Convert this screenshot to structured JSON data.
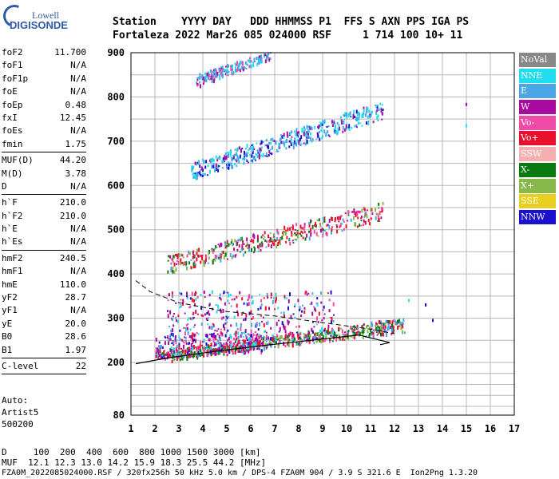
{
  "logo": {
    "line1": "Lowell",
    "line2": "DIGISONDE"
  },
  "header": {
    "row1": "Station    YYYY DAY   DDD HHMMSS P1  FFS S AXN PPS IGA PS",
    "row2": "Fortaleza 2022 Mar26 085 024000 RSF     1 714 100 10+ 11"
  },
  "params": [
    {
      "label": "foF2",
      "value": "11.700"
    },
    {
      "label": "foF1",
      "value": "N/A"
    },
    {
      "label": "foF1p",
      "value": "N/A"
    },
    {
      "label": "foE",
      "value": "N/A"
    },
    {
      "label": "foEp",
      "value": "0.48"
    },
    {
      "label": "fxI",
      "value": "12.45"
    },
    {
      "label": "foEs",
      "value": "N/A"
    },
    {
      "label": "fmin",
      "value": "1.75",
      "sep_after": true
    },
    {
      "label": "MUF(D)",
      "value": "44.20"
    },
    {
      "label": "M(D)",
      "value": "3.78"
    },
    {
      "label": "D",
      "value": "N/A",
      "sep_after": true
    },
    {
      "label": "h`F",
      "value": "210.0"
    },
    {
      "label": "h`F2",
      "value": "210.0"
    },
    {
      "label": "h`E",
      "value": "N/A"
    },
    {
      "label": "h`Es",
      "value": "N/A",
      "sep_after": true
    },
    {
      "label": "hmF2",
      "value": "240.5"
    },
    {
      "label": "hmF1",
      "value": "N/A"
    },
    {
      "label": "hmE",
      "value": "110.0"
    },
    {
      "label": "yF2",
      "value": "28.7"
    },
    {
      "label": "yF1",
      "value": "N/A"
    },
    {
      "label": "yE",
      "value": "20.0"
    },
    {
      "label": "B0",
      "value": "28.6"
    },
    {
      "label": "B1",
      "value": "1.97",
      "sep_after": true
    },
    {
      "label": "C-level",
      "value": "22",
      "sep_after": true
    }
  ],
  "autoscaling": {
    "line1": "Auto:",
    "line2": "Artist5",
    "line3": "500200"
  },
  "legend": [
    {
      "label": "NoVal",
      "color": "#888888"
    },
    {
      "label": "NNE",
      "color": "#22dcf0"
    },
    {
      "label": "E",
      "color": "#4aa6e6"
    },
    {
      "label": "W",
      "color": "#a80aa0"
    },
    {
      "label": "Vo-",
      "color": "#f04aa8"
    },
    {
      "label": "Vo+",
      "color": "#e8102a"
    },
    {
      "label": "SSW",
      "color": "#f4b0b0"
    },
    {
      "label": "X-",
      "color": "#0a7a10"
    },
    {
      "label": "X+",
      "color": "#88b84a"
    },
    {
      "label": "SSE",
      "color": "#e8d020"
    },
    {
      "label": "NNW",
      "color": "#1a10d0"
    }
  ],
  "bottom": {
    "line1": "D     100  200  400  600  800 1000 1500 3000 [km]",
    "line2": "MUF  12.1 12.3 13.0 14.2 15.9 18.3 25.5 44.2 [MHz]",
    "line3": "FZA0M_2022085024000.RSF / 320fx256h 50 kHz 5.0 km / DPS-4 FZA0M 904 / 3.9 S 321.6 E  Ion2Png 1.3.20"
  },
  "chart_data": {
    "type": "scatter",
    "xlim": [
      1,
      17
    ],
    "ylim": [
      80,
      900
    ],
    "x_ticks": [
      1,
      2,
      3,
      4,
      5,
      6,
      7,
      8,
      9,
      10,
      11,
      12,
      13,
      14,
      15,
      16,
      17
    ],
    "y_ticks": [
      80,
      200,
      300,
      400,
      500,
      600,
      700,
      800,
      900
    ],
    "grid": true,
    "clusters": [
      {
        "band": "F2 1st hop",
        "x_range": [
          2,
          12.4
        ],
        "y_start": [
          205,
          225
        ],
        "y_end": [
          265,
          300
        ],
        "color": "Vo+",
        "count": 450
      },
      {
        "band": "F2 1st hop X",
        "x_range": [
          2.5,
          12.5
        ],
        "y_start": [
          200,
          215
        ],
        "y_end": [
          275,
          300
        ],
        "color": "X-",
        "count": 250
      },
      {
        "band": "Spread low",
        "x_range": [
          2,
          6.5
        ],
        "y_start": [
          210,
          260
        ],
        "y_end": [
          220,
          270
        ],
        "color": "W",
        "count": 250
      },
      {
        "band": "Spread mid",
        "x_range": [
          2.5,
          9.5
        ],
        "y_start": [
          250,
          360
        ],
        "y_end": [
          250,
          360
        ],
        "color": "W",
        "count": 350
      },
      {
        "band": "2nd hop",
        "x_range": [
          2.5,
          11.5
        ],
        "y_start": [
          400,
          440
        ],
        "y_end": [
          520,
          560
        ],
        "color": "Vo+",
        "count": 400
      },
      {
        "band": "3rd hop",
        "x_range": [
          3.5,
          11.5
        ],
        "y_start": [
          610,
          650
        ],
        "y_end": [
          750,
          790
        ],
        "color": "E",
        "count": 450
      },
      {
        "band": "4th hop",
        "x_range": [
          3.7,
          6.8
        ],
        "y_start": [
          820,
          850
        ],
        "y_end": [
          885,
          900
        ],
        "color": "NNE",
        "count": 200
      }
    ],
    "isolated_points": [
      {
        "x": 13.3,
        "y": 330,
        "color": "NNW"
      },
      {
        "x": 13.6,
        "y": 295,
        "color": "NNW"
      },
      {
        "x": 15.0,
        "y": 783,
        "color": "W"
      },
      {
        "x": 15.0,
        "y": 735,
        "color": "NNE"
      },
      {
        "x": 12.6,
        "y": 340,
        "color": "NNE"
      }
    ],
    "trace_dashed": [
      [
        1.2,
        385
      ],
      [
        1.8,
        360
      ],
      [
        3,
        335
      ],
      [
        5,
        315
      ],
      [
        7,
        305
      ],
      [
        9,
        290
      ],
      [
        11,
        275
      ],
      [
        12,
        265
      ]
    ],
    "trace_solid": [
      [
        1.2,
        197
      ],
      [
        2.5,
        210
      ],
      [
        4.5,
        225
      ],
      [
        6.5,
        238
      ],
      [
        8.5,
        250
      ],
      [
        10.5,
        262
      ],
      [
        11.8,
        245
      ],
      [
        11.4,
        240
      ]
    ]
  }
}
